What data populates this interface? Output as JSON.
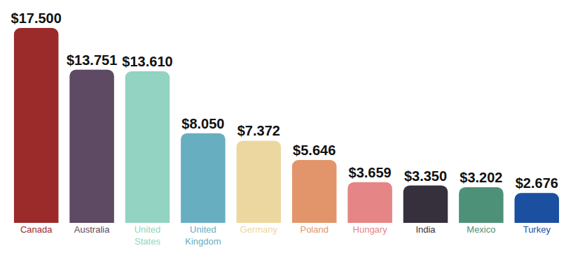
{
  "chart_data": {
    "type": "bar",
    "categories": [
      "Canada",
      "Australia",
      "United States",
      "United Kingdom",
      "Germany",
      "Poland",
      "Hungary",
      "India",
      "Mexico",
      "Turkey"
    ],
    "values": [
      17500,
      13751,
      13610,
      8050,
      7372,
      5646,
      3659,
      3350,
      3202,
      2676
    ],
    "value_labels": [
      "$17.500",
      "$13.751",
      "$13.610",
      "$8.050",
      "$7.372",
      "$5.646",
      "$3.659",
      "$3.350",
      "$3.202",
      "$2.676"
    ],
    "colors": [
      "#9b2b2b",
      "#5e4a63",
      "#93d3c2",
      "#67aec1",
      "#ecd7a0",
      "#e2956a",
      "#e58585",
      "#36303d",
      "#4d9178",
      "#1b4fa0"
    ],
    "ylim": [
      0,
      17500
    ],
    "data_labels": true,
    "grid": false,
    "tick_labels": "x"
  }
}
